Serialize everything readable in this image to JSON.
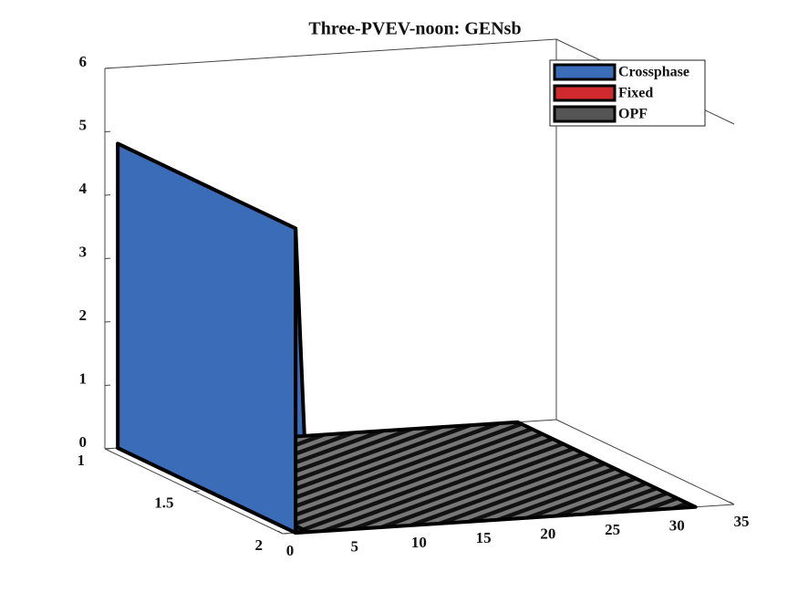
{
  "chart_data": {
    "type": "surface3d",
    "title": "Three-PVEV-noon: GENsb",
    "x": [
      1,
      2,
      32
    ],
    "depth": [
      1,
      2
    ],
    "series": [
      {
        "name": "Crossphase",
        "color": "#3b6cb7",
        "values": [
          4.8,
          0,
          0
        ]
      },
      {
        "name": "Fixed",
        "color": "#d02a2f",
        "values": [
          0,
          0,
          0
        ]
      },
      {
        "name": "OPF",
        "color": "#555555",
        "values": [
          0,
          0,
          0
        ]
      }
    ],
    "xlim": [
      0,
      35
    ],
    "xticks": [
      0,
      5,
      10,
      15,
      20,
      25,
      30,
      35
    ],
    "ylim": [
      1,
      2
    ],
    "yticks": [
      1,
      1.5,
      2
    ],
    "zlim": [
      0,
      6
    ],
    "zticks": [
      0,
      1,
      2,
      3,
      4,
      5,
      6
    ],
    "legend": "top-right"
  }
}
